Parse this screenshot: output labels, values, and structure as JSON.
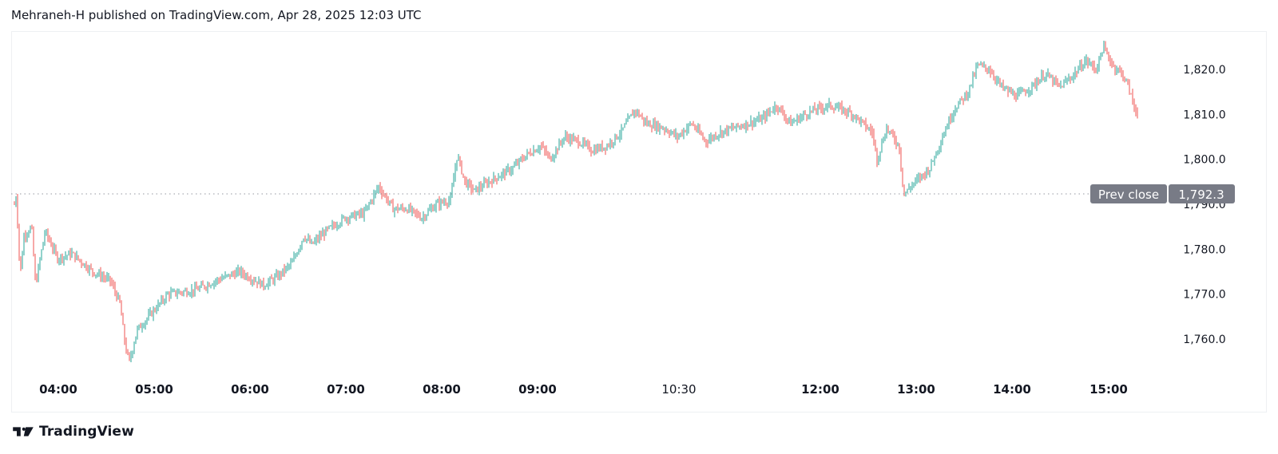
{
  "header": {
    "publisher_line": "Mehraneh-H published on TradingView.com, Apr 28, 2025 12:03 UTC"
  },
  "footer": {
    "brand": "TradingView",
    "logo_icon": "tradingview-logo-icon"
  },
  "colors": {
    "up": "#26a69a",
    "down": "#ef5350",
    "prev_close_bg": "#787b86",
    "grid_line": "#9598a1"
  },
  "chart_data": {
    "type": "candlestick",
    "title": "",
    "xlabel": "",
    "ylabel": "",
    "ylim": [
      1752,
      1828
    ],
    "y_ticks": [
      1760,
      1770,
      1780,
      1790,
      1800,
      1810,
      1820
    ],
    "y_tick_labels": [
      "1,760.0",
      "1,770.0",
      "1,780.0",
      "1,790.0",
      "1,800.0",
      "1,810.0",
      "1,820.0"
    ],
    "x_ticks": [
      "04:00",
      "05:00",
      "06:00",
      "07:00",
      "08:00",
      "09:00",
      "10:30",
      "12:00",
      "13:00",
      "14:00",
      "15:00"
    ],
    "x_major": [
      true,
      true,
      true,
      true,
      true,
      true,
      false,
      true,
      true,
      true,
      true
    ],
    "prev_close": {
      "label": "Prev close",
      "value": 1792.3,
      "value_label": "1,792.3"
    },
    "path_points": [
      [
        0,
        1790
      ],
      [
        0.02,
        1792
      ],
      [
        0.06,
        1774
      ],
      [
        0.1,
        1783
      ],
      [
        0.18,
        1785
      ],
      [
        0.22,
        1772
      ],
      [
        0.32,
        1784
      ],
      [
        0.45,
        1778
      ],
      [
        0.6,
        1779
      ],
      [
        0.82,
        1775
      ],
      [
        1.0,
        1773
      ],
      [
        1.1,
        1768
      ],
      [
        1.16,
        1758
      ],
      [
        1.2,
        1755
      ],
      [
        1.28,
        1762
      ],
      [
        1.4,
        1765
      ],
      [
        1.6,
        1770
      ],
      [
        1.9,
        1771
      ],
      [
        2.1,
        1773
      ],
      [
        2.35,
        1775
      ],
      [
        2.6,
        1772
      ],
      [
        2.75,
        1774
      ],
      [
        2.9,
        1777
      ],
      [
        3.02,
        1783
      ],
      [
        3.1,
        1781
      ],
      [
        3.25,
        1784
      ],
      [
        3.45,
        1787
      ],
      [
        3.65,
        1788
      ],
      [
        3.8,
        1794
      ],
      [
        3.95,
        1789
      ],
      [
        4.1,
        1789
      ],
      [
        4.25,
        1787
      ],
      [
        4.4,
        1790
      ],
      [
        4.55,
        1791
      ],
      [
        4.62,
        1801
      ],
      [
        4.7,
        1795
      ],
      [
        4.8,
        1793
      ],
      [
        4.95,
        1795
      ],
      [
        5.2,
        1798
      ],
      [
        5.35,
        1801
      ],
      [
        5.5,
        1803
      ],
      [
        5.6,
        1800
      ],
      [
        5.75,
        1805
      ],
      [
        5.9,
        1804
      ],
      [
        6.05,
        1802
      ],
      [
        6.2,
        1803
      ],
      [
        6.35,
        1806
      ],
      [
        6.5,
        1811
      ],
      [
        6.62,
        1808
      ],
      [
        6.8,
        1807
      ],
      [
        6.95,
        1805
      ],
      [
        7.1,
        1808
      ],
      [
        7.25,
        1804
      ],
      [
        7.4,
        1806
      ],
      [
        7.55,
        1807
      ],
      [
        7.7,
        1808
      ],
      [
        7.85,
        1809
      ],
      [
        8.0,
        1812
      ],
      [
        8.15,
        1808
      ],
      [
        8.3,
        1810
      ],
      [
        8.4,
        1811
      ],
      [
        8.55,
        1812
      ],
      [
        8.7,
        1811
      ],
      [
        8.8,
        1810
      ],
      [
        8.9,
        1808
      ],
      [
        9.0,
        1806
      ],
      [
        9.05,
        1800
      ],
      [
        9.15,
        1807
      ],
      [
        9.28,
        1803
      ],
      [
        9.33,
        1792
      ],
      [
        9.4,
        1794
      ],
      [
        9.6,
        1798
      ],
      [
        9.75,
        1806
      ],
      [
        9.85,
        1811
      ],
      [
        10.0,
        1815
      ],
      [
        10.1,
        1821
      ],
      [
        10.22,
        1820
      ],
      [
        10.35,
        1816
      ],
      [
        10.5,
        1814
      ],
      [
        10.65,
        1816
      ],
      [
        10.8,
        1819
      ],
      [
        10.95,
        1816
      ],
      [
        11.1,
        1819
      ],
      [
        11.22,
        1822
      ],
      [
        11.33,
        1820
      ],
      [
        11.4,
        1825
      ],
      [
        11.5,
        1821
      ],
      [
        11.6,
        1819
      ],
      [
        11.65,
        1817
      ],
      [
        11.72,
        1812
      ],
      [
        11.76,
        1810
      ]
    ]
  }
}
